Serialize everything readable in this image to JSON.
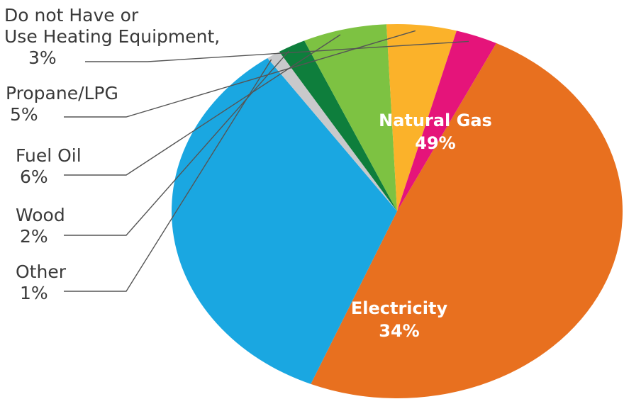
{
  "chart_data": {
    "type": "pie",
    "title": "",
    "slices": [
      {
        "label": "Natural Gas",
        "value": 49,
        "value_label": "49%",
        "color": "#E8701F"
      },
      {
        "label": "Electricity",
        "value": 34,
        "value_label": "34%",
        "color": "#1AA7E1"
      },
      {
        "label": "Other",
        "value": 1,
        "value_label": "1%",
        "color": "#C8C9CB"
      },
      {
        "label": "Wood",
        "value": 2,
        "value_label": "2%",
        "color": "#0E7E3C"
      },
      {
        "label": "Fuel Oil",
        "value": 6,
        "value_label": "6%",
        "color": "#7DC242"
      },
      {
        "label": "Propane/LPG",
        "value": 5,
        "value_label": "5%",
        "color": "#FBB22A"
      },
      {
        "label": "Do not Have or Use Heating Equipment,",
        "label_lines": [
          "Do not Have or",
          "Use Heating Equipment,"
        ],
        "value": 3,
        "value_label": "3%",
        "color": "#E5147A"
      }
    ]
  }
}
